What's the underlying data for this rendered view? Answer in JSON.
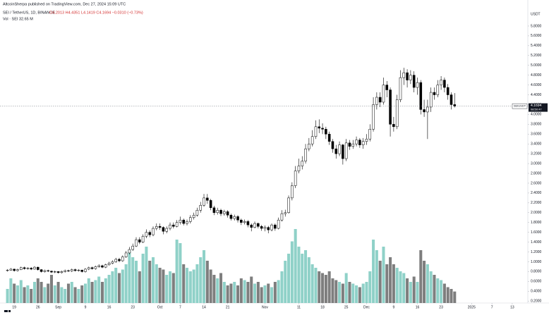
{
  "chart_data": {
    "type": "candlestick",
    "attribution": "AltcoinSherpa published on TradingView.com, Dec 27, 2024 15:09 UTC",
    "title": "SEI / TetherUS, 1D, BINANCE",
    "ohlc_legend": "O4.2013 H4.4351 L4.1419 C4.1694 −0.0310 (−0.73%)",
    "volume_legend": "Vol · SEI 32.65 M",
    "y_axis_label": "USDT",
    "last_price_symbol": "SEIUSDT",
    "countdown": "08:50:47",
    "up_color": "#ffffff",
    "down_color": "#000000",
    "outline_color": "#000000",
    "volume_up_color": "#8fd1c8",
    "volume_down_color": "#7e7e7e",
    "grid": false,
    "open": [
      0.82,
      0.83,
      0.85,
      0.82,
      0.84,
      0.88,
      0.86,
      0.87,
      0.85,
      0.89,
      0.84,
      0.8,
      0.82,
      0.81,
      0.79,
      0.8,
      0.78,
      0.8,
      0.82,
      0.81,
      0.84,
      0.82,
      0.83,
      0.8,
      0.85,
      0.88,
      0.86,
      0.9,
      0.92,
      0.89,
      0.94,
      0.97,
      1.0,
      1.05,
      1.02,
      1.1,
      1.18,
      1.25,
      1.32,
      1.45,
      1.4,
      1.52,
      1.6,
      1.55,
      1.68,
      1.72,
      1.7,
      1.62,
      1.68,
      1.75,
      1.72,
      1.8,
      1.85,
      1.78,
      1.82,
      1.9,
      1.95,
      2.05,
      2.15,
      2.3,
      2.25,
      2.1,
      2.0,
      2.05,
      1.98,
      2.02,
      1.95,
      1.88,
      1.92,
      1.85,
      1.8,
      1.82,
      1.75,
      1.7,
      1.78,
      1.72,
      1.68,
      1.7,
      1.65,
      1.75,
      1.68,
      1.85,
      1.98,
      2.0,
      2.3,
      2.55,
      2.85,
      2.95,
      3.05,
      3.3,
      3.4,
      3.55,
      3.75,
      3.72,
      3.7,
      3.6,
      3.45,
      3.3,
      3.2,
      3.38,
      3.1,
      3.42,
      3.35,
      3.4,
      3.48,
      3.38,
      3.45,
      3.5,
      3.7,
      4.2,
      4.35,
      4.25,
      4.6,
      4.5,
      3.8,
      3.75,
      4.3,
      4.75,
      4.85,
      4.7,
      4.8,
      4.55,
      4.65,
      4.1,
      4.05,
      4.15,
      4.45,
      4.4,
      4.6,
      4.7,
      4.55,
      4.4,
      4.2013
    ],
    "high": [
      0.85,
      0.87,
      0.86,
      0.86,
      0.9,
      0.9,
      0.89,
      0.89,
      0.91,
      0.9,
      0.85,
      0.84,
      0.84,
      0.82,
      0.82,
      0.81,
      0.82,
      0.84,
      0.84,
      0.86,
      0.86,
      0.85,
      0.84,
      0.87,
      0.9,
      0.9,
      0.92,
      0.95,
      0.94,
      0.96,
      1.0,
      1.03,
      1.08,
      1.08,
      1.13,
      1.22,
      1.3,
      1.37,
      1.5,
      1.5,
      1.56,
      1.66,
      1.64,
      1.72,
      1.78,
      1.78,
      1.72,
      1.72,
      1.8,
      1.8,
      1.85,
      1.92,
      1.88,
      1.86,
      1.95,
      2.0,
      2.1,
      2.22,
      2.38,
      2.38,
      2.28,
      2.14,
      2.1,
      2.08,
      2.06,
      2.05,
      1.98,
      1.96,
      1.95,
      1.88,
      1.86,
      1.85,
      1.78,
      1.82,
      1.8,
      1.75,
      1.74,
      1.73,
      1.78,
      1.78,
      1.9,
      2.05,
      2.06,
      2.35,
      2.62,
      2.95,
      3.1,
      3.15,
      3.4,
      3.52,
      3.68,
      3.88,
      3.9,
      3.82,
      3.75,
      3.65,
      3.5,
      3.38,
      3.45,
      3.4,
      3.5,
      3.48,
      3.48,
      3.55,
      3.52,
      3.52,
      3.6,
      3.8,
      4.35,
      4.45,
      4.45,
      4.75,
      4.68,
      4.55,
      3.95,
      4.4,
      4.9,
      4.95,
      4.92,
      4.9,
      4.88,
      4.75,
      4.7,
      4.3,
      4.3,
      4.55,
      4.55,
      4.7,
      4.78,
      4.75,
      4.62,
      4.45,
      4.4351
    ],
    "low": [
      0.8,
      0.82,
      0.8,
      0.8,
      0.83,
      0.84,
      0.84,
      0.83,
      0.84,
      0.82,
      0.78,
      0.78,
      0.79,
      0.77,
      0.77,
      0.76,
      0.76,
      0.78,
      0.79,
      0.79,
      0.8,
      0.8,
      0.78,
      0.78,
      0.83,
      0.84,
      0.84,
      0.88,
      0.87,
      0.87,
      0.92,
      0.95,
      0.98,
      0.99,
      1.0,
      1.08,
      1.15,
      1.22,
      1.3,
      1.36,
      1.38,
      1.48,
      1.5,
      1.52,
      1.64,
      1.65,
      1.56,
      1.58,
      1.64,
      1.68,
      1.7,
      1.76,
      1.74,
      1.74,
      1.78,
      1.86,
      1.92,
      2.0,
      2.12,
      2.18,
      2.05,
      1.95,
      1.96,
      1.93,
      1.94,
      1.9,
      1.84,
      1.84,
      1.8,
      1.75,
      1.76,
      1.7,
      1.62,
      1.68,
      1.68,
      1.63,
      1.62,
      1.58,
      1.62,
      1.63,
      1.66,
      1.82,
      1.92,
      1.98,
      2.25,
      2.5,
      2.8,
      2.88,
      3.0,
      3.25,
      3.35,
      3.5,
      3.62,
      3.6,
      3.5,
      3.38,
      3.22,
      3.1,
      3.15,
      2.98,
      3.05,
      3.28,
      3.3,
      3.35,
      3.32,
      3.3,
      3.38,
      3.45,
      3.65,
      4.1,
      4.15,
      4.2,
      4.35,
      3.55,
      3.65,
      3.7,
      4.25,
      4.6,
      4.55,
      4.62,
      4.45,
      4.4,
      4.0,
      3.95,
      3.5,
      4.05,
      4.3,
      4.35,
      4.5,
      4.45,
      4.3,
      4.1,
      4.1419
    ],
    "close": [
      0.83,
      0.85,
      0.82,
      0.84,
      0.88,
      0.86,
      0.87,
      0.85,
      0.89,
      0.84,
      0.8,
      0.82,
      0.81,
      0.79,
      0.8,
      0.78,
      0.8,
      0.82,
      0.81,
      0.84,
      0.82,
      0.83,
      0.8,
      0.85,
      0.88,
      0.86,
      0.9,
      0.92,
      0.89,
      0.94,
      0.97,
      1.0,
      1.05,
      1.02,
      1.1,
      1.18,
      1.25,
      1.32,
      1.45,
      1.4,
      1.52,
      1.6,
      1.55,
      1.68,
      1.72,
      1.7,
      1.62,
      1.68,
      1.75,
      1.72,
      1.8,
      1.85,
      1.78,
      1.82,
      1.9,
      1.95,
      2.05,
      2.15,
      2.3,
      2.25,
      2.1,
      2.0,
      2.05,
      1.98,
      2.02,
      1.95,
      1.88,
      1.92,
      1.85,
      1.8,
      1.82,
      1.75,
      1.7,
      1.78,
      1.72,
      1.68,
      1.7,
      1.65,
      1.75,
      1.68,
      1.85,
      1.98,
      2.0,
      2.3,
      2.55,
      2.85,
      2.95,
      3.05,
      3.3,
      3.4,
      3.55,
      3.75,
      3.72,
      3.7,
      3.6,
      3.45,
      3.3,
      3.2,
      3.38,
      3.1,
      3.42,
      3.35,
      3.4,
      3.48,
      3.38,
      3.45,
      3.5,
      3.7,
      4.2,
      4.35,
      4.25,
      4.6,
      4.5,
      3.8,
      3.75,
      4.3,
      4.75,
      4.85,
      4.7,
      4.8,
      4.55,
      4.65,
      4.1,
      4.05,
      4.15,
      4.45,
      4.4,
      4.6,
      4.7,
      4.55,
      4.4,
      4.2,
      4.1694
    ],
    "volume": [
      40,
      70,
      55,
      50,
      65,
      45,
      50,
      40,
      60,
      70,
      60,
      45,
      55,
      80,
      50,
      60,
      45,
      40,
      55,
      60,
      45,
      40,
      50,
      55,
      70,
      60,
      65,
      75,
      60,
      70,
      80,
      90,
      100,
      85,
      95,
      110,
      150,
      130,
      120,
      90,
      140,
      160,
      120,
      130,
      110,
      100,
      95,
      80,
      90,
      85,
      180,
      170,
      110,
      100,
      90,
      95,
      110,
      130,
      150,
      120,
      95,
      80,
      70,
      85,
      60,
      50,
      55,
      60,
      50,
      70,
      65,
      60,
      75,
      55,
      60,
      45,
      50,
      55,
      45,
      60,
      65,
      90,
      120,
      140,
      175,
      210,
      160,
      140,
      150,
      130,
      110,
      100,
      90,
      85,
      80,
      90,
      70,
      65,
      60,
      55,
      85,
      60,
      55,
      50,
      45,
      55,
      60,
      90,
      180,
      150,
      120,
      160,
      110,
      130,
      110,
      100,
      90,
      85,
      70,
      60,
      75,
      60,
      150,
      120,
      110,
      90,
      80,
      70,
      65,
      55,
      45,
      40,
      32.65
    ],
    "xlim": [
      -2.2,
      153.6
    ],
    "xticks": [
      {
        "value": 2,
        "label": "19"
      },
      {
        "value": 9,
        "label": "26"
      },
      {
        "value": 15,
        "label": "Sep"
      },
      {
        "value": 23,
        "label": "9"
      },
      {
        "value": 30,
        "label": "16"
      },
      {
        "value": 37,
        "label": "23"
      },
      {
        "value": 45,
        "label": "Oct"
      },
      {
        "value": 51,
        "label": "7"
      },
      {
        "value": 58,
        "label": "14"
      },
      {
        "value": 65,
        "label": "21"
      },
      {
        "value": 76,
        "label": "Nov"
      },
      {
        "value": 86,
        "label": "11"
      },
      {
        "value": 93,
        "label": "18"
      },
      {
        "value": 100,
        "label": "25"
      },
      {
        "value": 106,
        "label": "Dec"
      },
      {
        "value": 114,
        "label": "9"
      },
      {
        "value": 121,
        "label": "16"
      },
      {
        "value": 128,
        "label": "23"
      },
      {
        "value": 137,
        "label": "2025"
      },
      {
        "value": 143,
        "label": "7"
      },
      {
        "value": 149,
        "label": "13"
      }
    ],
    "ylim": [
      0.16,
      5.9
    ],
    "yticks": [
      {
        "value": 0.2,
        "label": "0.2000"
      },
      {
        "value": 0.4,
        "label": "0.4000"
      },
      {
        "value": 0.6,
        "label": "0.6000"
      },
      {
        "value": 0.8,
        "label": "0.8000"
      },
      {
        "value": 1.0,
        "label": "1.0000"
      },
      {
        "value": 1.2,
        "label": "1.2000"
      },
      {
        "value": 1.4,
        "label": "1.4000"
      },
      {
        "value": 1.6,
        "label": "1.6000"
      },
      {
        "value": 1.8,
        "label": "1.8000"
      },
      {
        "value": 2.0,
        "label": "2.0000"
      },
      {
        "value": 2.2,
        "label": "2.2000"
      },
      {
        "value": 2.4,
        "label": "2.4000"
      },
      {
        "value": 2.6,
        "label": "2.6000"
      },
      {
        "value": 2.8,
        "label": "2.8000"
      },
      {
        "value": 3.0,
        "label": "3.0000"
      },
      {
        "value": 3.2,
        "label": "3.2000"
      },
      {
        "value": 3.4,
        "label": "3.4000"
      },
      {
        "value": 3.6,
        "label": "3.6000"
      },
      {
        "value": 3.8,
        "label": "3.8000"
      },
      {
        "value": 4.0,
        "label": "4.0000"
      },
      {
        "value": 4.2,
        "label": "4.2000"
      },
      {
        "value": 4.4,
        "label": "4.4000"
      },
      {
        "value": 4.6,
        "label": "4.6000"
      },
      {
        "value": 4.8,
        "label": "4.8000"
      },
      {
        "value": 5.0,
        "label": "5.0000"
      },
      {
        "value": 5.2,
        "label": "5.2000"
      },
      {
        "value": 5.4,
        "label": "5.4000"
      },
      {
        "value": 5.6,
        "label": "5.6000"
      },
      {
        "value": 5.8,
        "label": "5.8000"
      }
    ]
  }
}
